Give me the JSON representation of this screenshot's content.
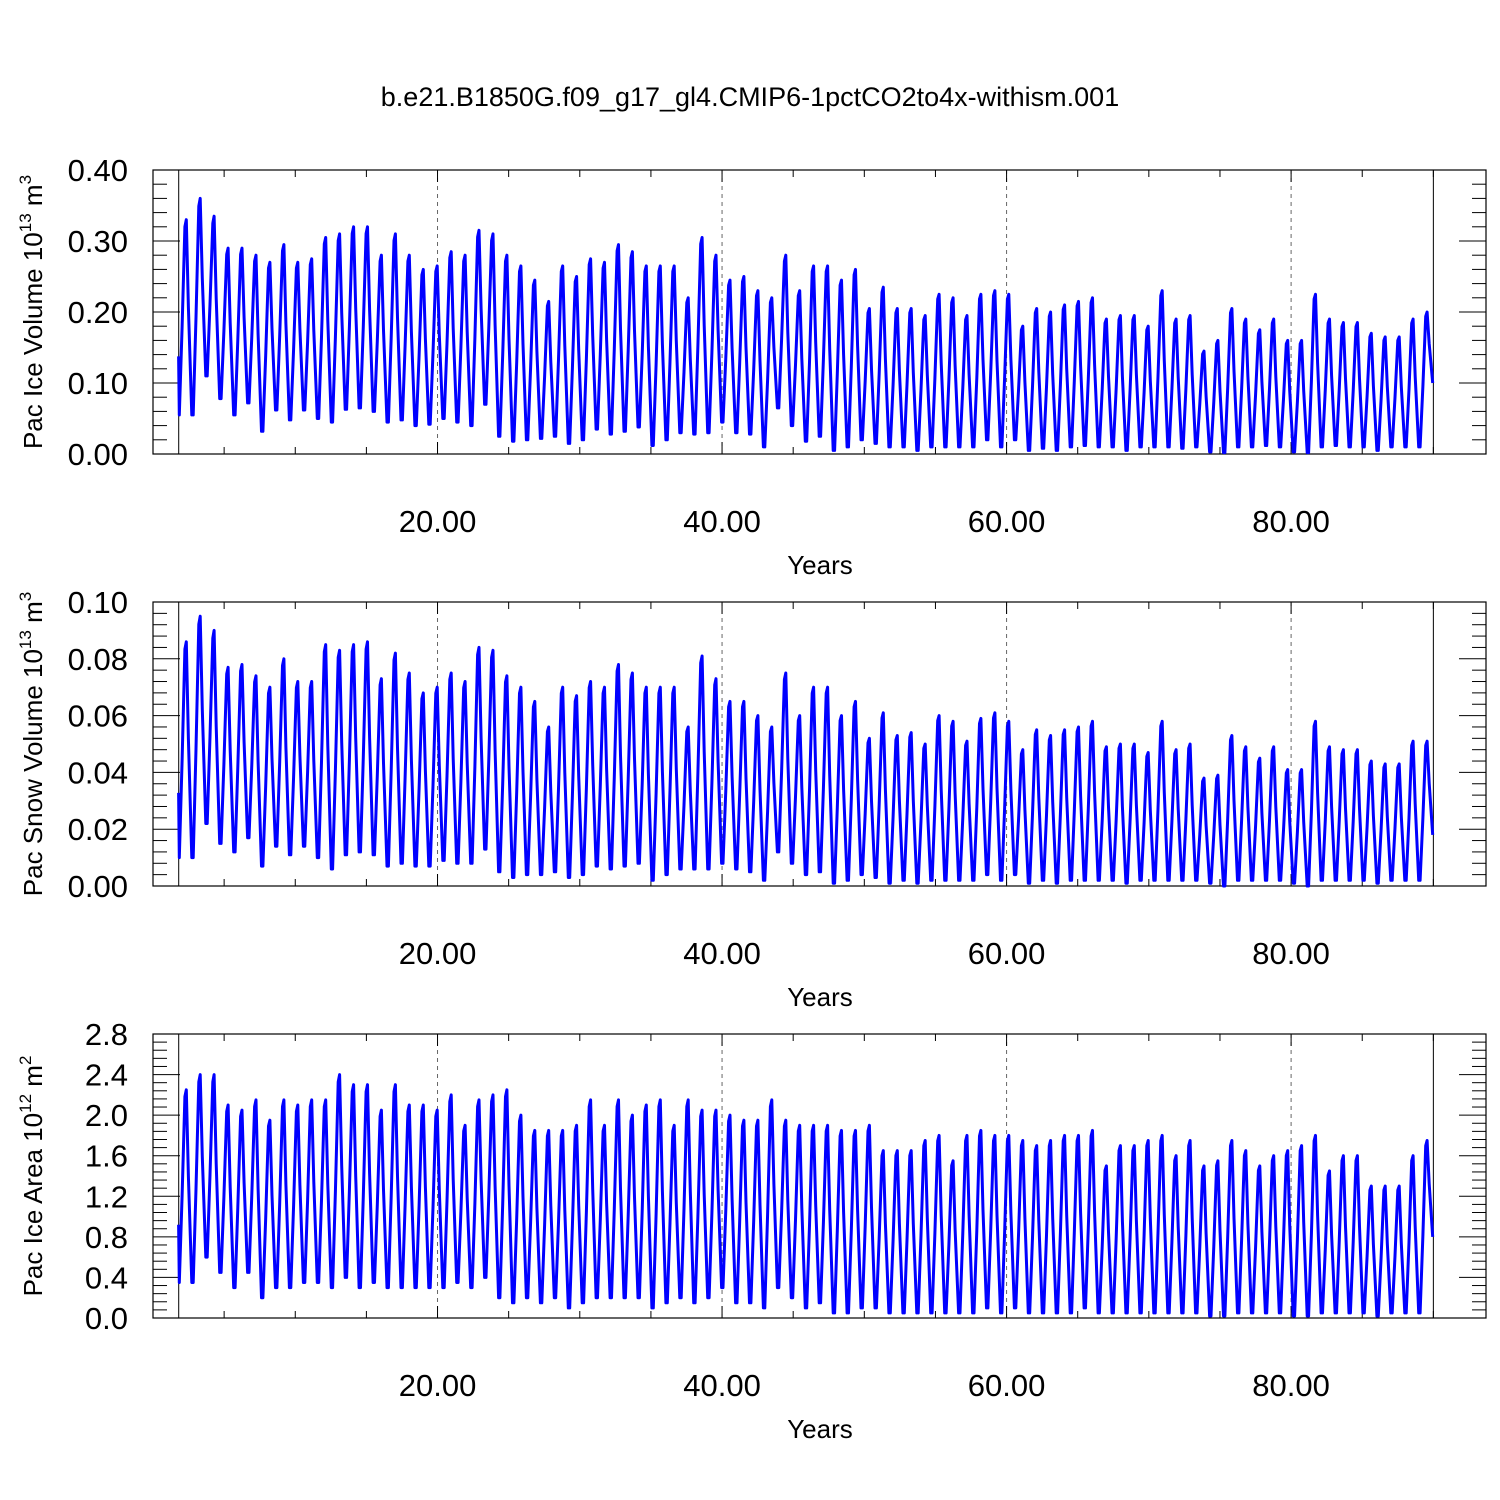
{
  "title": "b.e21.B1850G.f09_g17_gl4.CMIP6-1pctCO2to4x-withism.001",
  "chart_data": [
    {
      "type": "line",
      "ylabel": "Pac Ice Volume 10",
      "ylabel_exp": "13",
      "ylabel_unit": " m",
      "ylabel_unit_exp": "3",
      "xlabel": "Years",
      "xlim": [
        0.05,
        90.0
      ],
      "ylim": [
        0.0,
        0.4
      ],
      "yticks": [
        0.0,
        0.1,
        0.2,
        0.3,
        0.4
      ],
      "ytick_labels": [
        "0.00",
        "0.10",
        "0.20",
        "0.30",
        "0.40"
      ],
      "xticks": [
        20,
        40,
        60,
        80
      ],
      "xtick_labels": [
        "20.00",
        "40.00",
        "60.00",
        "80.00"
      ],
      "grid": "dashed vertical lines at major x ticks",
      "series_color": "#0000ff",
      "x_start": 0.05,
      "x_step": 1,
      "maxima": [
        0.33,
        0.36,
        0.335,
        0.29,
        0.29,
        0.28,
        0.27,
        0.295,
        0.27,
        0.275,
        0.305,
        0.31,
        0.32,
        0.32,
        0.28,
        0.31,
        0.28,
        0.26,
        0.265,
        0.285,
        0.28,
        0.315,
        0.31,
        0.28,
        0.265,
        0.245,
        0.215,
        0.265,
        0.25,
        0.275,
        0.27,
        0.295,
        0.285,
        0.265,
        0.265,
        0.265,
        0.22,
        0.305,
        0.28,
        0.245,
        0.25,
        0.23,
        0.22,
        0.28,
        0.23,
        0.265,
        0.265,
        0.245,
        0.26,
        0.205,
        0.235,
        0.205,
        0.205,
        0.195,
        0.225,
        0.22,
        0.195,
        0.225,
        0.23,
        0.225,
        0.18,
        0.205,
        0.2,
        0.21,
        0.215,
        0.22,
        0.19,
        0.195,
        0.195,
        0.18,
        0.23,
        0.19,
        0.195,
        0.145,
        0.16,
        0.205,
        0.19,
        0.175,
        0.19,
        0.16,
        0.16,
        0.225,
        0.19,
        0.185,
        0.185,
        0.17,
        0.165,
        0.165,
        0.19,
        0.2
      ],
      "minima": [
        0.055,
        0.11,
        0.078,
        0.055,
        0.072,
        0.032,
        0.062,
        0.048,
        0.062,
        0.05,
        0.045,
        0.063,
        0.065,
        0.06,
        0.045,
        0.048,
        0.04,
        0.042,
        0.05,
        0.045,
        0.04,
        0.07,
        0.025,
        0.018,
        0.02,
        0.022,
        0.025,
        0.015,
        0.02,
        0.035,
        0.028,
        0.032,
        0.038,
        0.012,
        0.02,
        0.03,
        0.028,
        0.03,
        0.045,
        0.03,
        0.028,
        0.01,
        0.065,
        0.04,
        0.018,
        0.025,
        0.005,
        0.01,
        0.02,
        0.015,
        0.01,
        0.01,
        0.005,
        0.01,
        0.01,
        0.01,
        0.01,
        0.02,
        0.01,
        0.02,
        0.005,
        0.008,
        0.005,
        0.01,
        0.012,
        0.01,
        0.01,
        0.005,
        0.01,
        0.01,
        0.01,
        0.008,
        0.01,
        0.003,
        0.002,
        0.01,
        0.01,
        0.012,
        0.01,
        0.003,
        0.002,
        0.01,
        0.012,
        0.01,
        0.01,
        0.005,
        0.01,
        0.01,
        0.01,
        0.1
      ]
    },
    {
      "type": "line",
      "ylabel": "Pac Snow Volume 10",
      "ylabel_exp": "13",
      "ylabel_unit": " m",
      "ylabel_unit_exp": "3",
      "xlabel": "Years",
      "xlim": [
        0.05,
        90.0
      ],
      "ylim": [
        0.0,
        0.1
      ],
      "yticks": [
        0.0,
        0.02,
        0.04,
        0.06,
        0.08,
        0.1
      ],
      "ytick_labels": [
        "0.00",
        "0.02",
        "0.04",
        "0.06",
        "0.08",
        "0.10"
      ],
      "xticks": [
        20,
        40,
        60,
        80
      ],
      "xtick_labels": [
        "20.00",
        "40.00",
        "60.00",
        "80.00"
      ],
      "grid": "dashed vertical lines at major x ticks",
      "series_color": "#0000ff",
      "x_start": 0.05,
      "x_step": 1,
      "maxima": [
        0.086,
        0.095,
        0.09,
        0.077,
        0.078,
        0.074,
        0.07,
        0.08,
        0.072,
        0.072,
        0.085,
        0.083,
        0.085,
        0.086,
        0.073,
        0.082,
        0.075,
        0.068,
        0.07,
        0.075,
        0.072,
        0.084,
        0.083,
        0.074,
        0.07,
        0.065,
        0.056,
        0.07,
        0.067,
        0.072,
        0.07,
        0.078,
        0.075,
        0.07,
        0.07,
        0.07,
        0.056,
        0.081,
        0.073,
        0.065,
        0.065,
        0.06,
        0.056,
        0.075,
        0.06,
        0.07,
        0.07,
        0.06,
        0.065,
        0.052,
        0.061,
        0.053,
        0.054,
        0.05,
        0.06,
        0.058,
        0.051,
        0.059,
        0.061,
        0.058,
        0.048,
        0.055,
        0.053,
        0.055,
        0.056,
        0.058,
        0.049,
        0.05,
        0.05,
        0.047,
        0.058,
        0.048,
        0.05,
        0.038,
        0.039,
        0.053,
        0.049,
        0.045,
        0.049,
        0.041,
        0.041,
        0.058,
        0.049,
        0.048,
        0.048,
        0.044,
        0.043,
        0.043,
        0.051,
        0.051
      ],
      "minima": [
        0.01,
        0.022,
        0.015,
        0.012,
        0.017,
        0.007,
        0.014,
        0.011,
        0.014,
        0.01,
        0.006,
        0.011,
        0.012,
        0.011,
        0.007,
        0.008,
        0.007,
        0.007,
        0.009,
        0.008,
        0.008,
        0.013,
        0.005,
        0.003,
        0.004,
        0.004,
        0.005,
        0.003,
        0.004,
        0.007,
        0.006,
        0.007,
        0.008,
        0.002,
        0.004,
        0.006,
        0.006,
        0.006,
        0.008,
        0.006,
        0.005,
        0.002,
        0.012,
        0.008,
        0.004,
        0.005,
        0.001,
        0.002,
        0.004,
        0.003,
        0.001,
        0.002,
        0.001,
        0.002,
        0.002,
        0.002,
        0.002,
        0.004,
        0.002,
        0.004,
        0.001,
        0.002,
        0.001,
        0.002,
        0.002,
        0.002,
        0.002,
        0.001,
        0.002,
        0.002,
        0.002,
        0.002,
        0.002,
        0.001,
        0.0,
        0.002,
        0.002,
        0.002,
        0.002,
        0.001,
        0.0,
        0.002,
        0.002,
        0.002,
        0.002,
        0.001,
        0.002,
        0.002,
        0.002,
        0.018
      ]
    },
    {
      "type": "line",
      "ylabel": "Pac Ice Area 10",
      "ylabel_exp": "12",
      "ylabel_unit": " m",
      "ylabel_unit_exp": "2",
      "xlabel": "Years",
      "xlim": [
        0.05,
        90.0
      ],
      "ylim": [
        0.0,
        2.8
      ],
      "yticks": [
        0.0,
        0.4,
        0.8,
        1.2,
        1.6,
        2.0,
        2.4,
        2.8
      ],
      "ytick_labels": [
        "0.0",
        "0.4",
        "0.8",
        "1.2",
        "1.6",
        "2.0",
        "2.4",
        "2.8"
      ],
      "xticks": [
        20,
        40,
        60,
        80
      ],
      "xtick_labels": [
        "20.00",
        "40.00",
        "60.00",
        "80.00"
      ],
      "grid": "dashed vertical lines at major x ticks",
      "series_color": "#0000ff",
      "x_start": 0.05,
      "x_step": 1,
      "maxima": [
        2.25,
        2.4,
        2.4,
        2.1,
        2.05,
        2.15,
        1.95,
        2.15,
        2.1,
        2.15,
        2.15,
        2.4,
        2.3,
        2.3,
        2.05,
        2.3,
        2.1,
        2.1,
        2.05,
        2.2,
        1.9,
        2.15,
        2.2,
        2.25,
        2.0,
        1.85,
        1.85,
        1.85,
        1.9,
        2.15,
        1.9,
        2.15,
        2.0,
        2.1,
        2.15,
        1.9,
        2.15,
        2.05,
        2.05,
        2.0,
        1.95,
        1.95,
        2.15,
        1.95,
        1.9,
        1.9,
        1.9,
        1.85,
        1.85,
        1.9,
        1.65,
        1.65,
        1.65,
        1.75,
        1.8,
        1.55,
        1.8,
        1.85,
        1.8,
        1.8,
        1.75,
        1.7,
        1.75,
        1.8,
        1.8,
        1.85,
        1.5,
        1.7,
        1.7,
        1.75,
        1.8,
        1.6,
        1.75,
        1.5,
        1.55,
        1.75,
        1.65,
        1.5,
        1.6,
        1.65,
        1.7,
        1.8,
        1.45,
        1.6,
        1.6,
        1.3,
        1.3,
        1.3,
        1.6,
        1.75
      ],
      "minima": [
        0.35,
        0.6,
        0.45,
        0.3,
        0.45,
        0.2,
        0.3,
        0.3,
        0.35,
        0.35,
        0.3,
        0.4,
        0.3,
        0.35,
        0.3,
        0.3,
        0.3,
        0.3,
        0.3,
        0.35,
        0.3,
        0.4,
        0.2,
        0.15,
        0.2,
        0.15,
        0.2,
        0.1,
        0.15,
        0.2,
        0.2,
        0.2,
        0.2,
        0.1,
        0.15,
        0.2,
        0.15,
        0.2,
        0.3,
        0.15,
        0.15,
        0.1,
        0.3,
        0.2,
        0.1,
        0.15,
        0.05,
        0.05,
        0.1,
        0.1,
        0.05,
        0.05,
        0.05,
        0.05,
        0.05,
        0.05,
        0.05,
        0.1,
        0.05,
        0.1,
        0.05,
        0.05,
        0.05,
        0.05,
        0.1,
        0.05,
        0.05,
        0.05,
        0.05,
        0.05,
        0.05,
        0.05,
        0.05,
        0.02,
        0.02,
        0.05,
        0.05,
        0.05,
        0.05,
        0.02,
        0.02,
        0.05,
        0.05,
        0.05,
        0.05,
        0.02,
        0.05,
        0.05,
        0.05,
        0.8
      ]
    }
  ]
}
